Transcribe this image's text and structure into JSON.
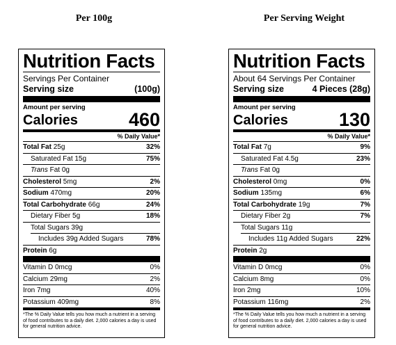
{
  "headings": {
    "left": "Per 100g",
    "right": "Per Serving Weight"
  },
  "labels": [
    {
      "title": "Nutrition Facts",
      "servings_per_container": "Servings Per Container",
      "serving_size_label": "Serving size",
      "serving_size_value": "(100g)",
      "amount_per_serving": "Amount per serving",
      "calories_label": "Calories",
      "calories_value": "460",
      "dv_header": "% Daily Value*",
      "rows": {
        "total_fat": {
          "name": "Total Fat",
          "amount": "25g",
          "dv": "32%"
        },
        "saturated_fat": {
          "name": "Saturated Fat 15g",
          "dv": "75%"
        },
        "trans_fat_prefix": "Trans",
        "trans_fat_suffix": "Fat 0g",
        "cholesterol": {
          "name": "Cholesterol",
          "amount": "5mg",
          "dv": "2%"
        },
        "sodium": {
          "name": "Sodium",
          "amount": "470mg",
          "dv": "20%"
        },
        "total_carb": {
          "name": "Total Carbohydrate",
          "amount": "66g",
          "dv": "24%"
        },
        "fiber": {
          "name": "Dietary Fiber 5g",
          "dv": "18%"
        },
        "total_sugars": {
          "name": "Total Sugars 39g"
        },
        "added_sugars": {
          "name": "Includes 39g Added Sugars",
          "dv": "78%"
        },
        "protein": {
          "name": "Protein",
          "amount": "6g"
        },
        "vitamin_d": {
          "name": "Vitamin D 0mcg",
          "dv": "0%"
        },
        "calcium": {
          "name": "Calcium 29mg",
          "dv": "2%"
        },
        "iron": {
          "name": "Iron 7mg",
          "dv": "40%"
        },
        "potassium": {
          "name": "Potassium 409mg",
          "dv": "8%"
        }
      },
      "footnote": "*The % Daily Value tells you how much a nutrient in a serving of food contributes to a daily diet. 2,000 calories a day is used for general nutrition advice."
    },
    {
      "title": "Nutrition Facts",
      "servings_per_container": "About 64 Servings Per Container",
      "serving_size_label": "Serving size",
      "serving_size_value": "4 Pieces (28g)",
      "amount_per_serving": "Amount per serving",
      "calories_label": "Calories",
      "calories_value": "130",
      "dv_header": "% Daily Value*",
      "rows": {
        "total_fat": {
          "name": "Total Fat",
          "amount": "7g",
          "dv": "9%"
        },
        "saturated_fat": {
          "name": "Saturated Fat 4.5g",
          "dv": "23%"
        },
        "trans_fat_prefix": "Trans",
        "trans_fat_suffix": "Fat 0g",
        "cholesterol": {
          "name": "Cholesterol",
          "amount": "0mg",
          "dv": "0%"
        },
        "sodium": {
          "name": "Sodium",
          "amount": "135mg",
          "dv": "6%"
        },
        "total_carb": {
          "name": "Total Carbohydrate",
          "amount": "19g",
          "dv": "7%"
        },
        "fiber": {
          "name": "Dietary Fiber 2g",
          "dv": "7%"
        },
        "total_sugars": {
          "name": "Total Sugars 11g"
        },
        "added_sugars": {
          "name": "Includes 11g Added Sugars",
          "dv": "22%"
        },
        "protein": {
          "name": "Protein",
          "amount": "2g"
        },
        "vitamin_d": {
          "name": "Vitamin D 0mcg",
          "dv": "0%"
        },
        "calcium": {
          "name": "Calcium 8mg",
          "dv": "0%"
        },
        "iron": {
          "name": "Iron 2mg",
          "dv": "10%"
        },
        "potassium": {
          "name": "Potassium 116mg",
          "dv": "2%"
        }
      },
      "footnote": "*The % Daily Value tells you how much a nutrient in a serving of food contributes to a daily diet. 2,000 calories a day is used for general nutrition advice."
    }
  ]
}
